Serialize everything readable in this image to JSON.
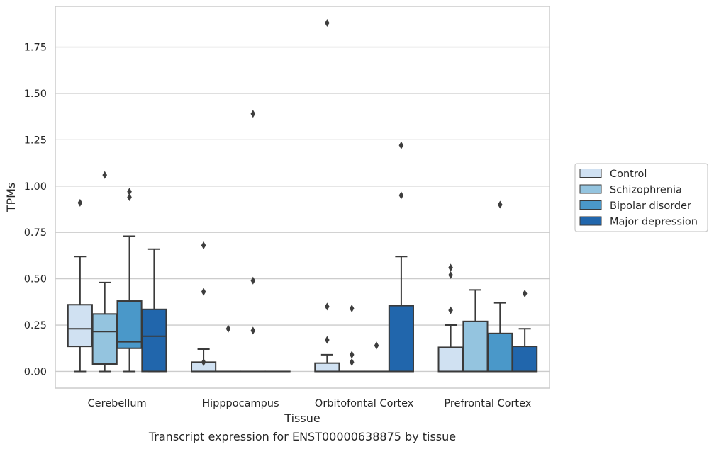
{
  "caption": "Transcript expression for ENST00000638875 by tissue",
  "chart_data": {
    "type": "box",
    "title": "",
    "xlabel": "Tissue",
    "ylabel": "TPMs",
    "ylim": [
      -0.09,
      1.97
    ],
    "yticks": [
      "0.00",
      "0.25",
      "0.50",
      "0.75",
      "1.00",
      "1.25",
      "1.50",
      "1.75"
    ],
    "grid": "horizontal",
    "legend_position": "right",
    "categories": [
      "Cerebellum",
      "Hipppocampus",
      "Orbitofontal Cortex",
      "Prefrontal Cortex"
    ],
    "series": [
      {
        "name": "Control",
        "color": "#d0e1f2",
        "boxes": [
          {
            "whislo": 0.0,
            "q1": 0.135,
            "med": 0.23,
            "q3": 0.36,
            "whishi": 0.62,
            "fliers": [
              0.91
            ]
          },
          {
            "whislo": 0.0,
            "q1": 0.0,
            "med": 0.0,
            "q3": 0.05,
            "whishi": 0.12,
            "fliers": [
              0.68,
              0.43,
              0.05
            ]
          },
          {
            "whislo": 0.0,
            "q1": 0.0,
            "med": 0.0,
            "q3": 0.045,
            "whishi": 0.09,
            "fliers": [
              1.88,
              0.35,
              0.17
            ]
          },
          {
            "whislo": 0.0,
            "q1": 0.0,
            "med": 0.0,
            "q3": 0.13,
            "whishi": 0.25,
            "fliers": [
              0.56,
              0.52,
              0.33
            ]
          }
        ]
      },
      {
        "name": "Schizophrenia",
        "color": "#94c4df",
        "boxes": [
          {
            "whislo": 0.0,
            "q1": 0.04,
            "med": 0.215,
            "q3": 0.31,
            "whishi": 0.48,
            "fliers": [
              1.06
            ]
          },
          {
            "whislo": 0.0,
            "q1": 0.0,
            "med": 0.0,
            "q3": 0.0,
            "whishi": 0.0,
            "fliers": [
              0.23
            ]
          },
          {
            "whislo": 0.0,
            "q1": 0.0,
            "med": 0.0,
            "q3": 0.0,
            "whishi": 0.0,
            "fliers": [
              0.34,
              0.09,
              0.05
            ]
          },
          {
            "whislo": 0.0,
            "q1": 0.0,
            "med": 0.0,
            "q3": 0.27,
            "whishi": 0.44,
            "fliers": []
          }
        ]
      },
      {
        "name": "Bipolar disorder",
        "color": "#4a98c9",
        "boxes": [
          {
            "whislo": 0.0,
            "q1": 0.125,
            "med": 0.16,
            "q3": 0.38,
            "whishi": 0.73,
            "fliers": [
              0.97,
              0.94
            ]
          },
          {
            "whislo": 0.0,
            "q1": 0.0,
            "med": 0.0,
            "q3": 0.0,
            "whishi": 0.0,
            "fliers": [
              1.39,
              0.49,
              0.22
            ]
          },
          {
            "whislo": 0.0,
            "q1": 0.0,
            "med": 0.0,
            "q3": 0.0,
            "whishi": 0.0,
            "fliers": [
              0.14
            ]
          },
          {
            "whislo": 0.0,
            "q1": 0.0,
            "med": 0.0,
            "q3": 0.205,
            "whishi": 0.37,
            "fliers": [
              0.9
            ]
          }
        ]
      },
      {
        "name": "Major depression",
        "color": "#2166ac",
        "boxes": [
          {
            "whislo": 0.0,
            "q1": 0.0,
            "med": 0.19,
            "q3": 0.335,
            "whishi": 0.66,
            "fliers": []
          },
          {
            "whislo": 0.0,
            "q1": 0.0,
            "med": 0.0,
            "q3": 0.0,
            "whishi": 0.0,
            "fliers": []
          },
          {
            "whislo": 0.0,
            "q1": 0.0,
            "med": 0.0,
            "q3": 0.355,
            "whishi": 0.62,
            "fliers": [
              1.22,
              0.95
            ]
          },
          {
            "whislo": 0.0,
            "q1": 0.0,
            "med": 0.0,
            "q3": 0.135,
            "whishi": 0.23,
            "fliers": [
              0.42
            ]
          }
        ]
      }
    ]
  }
}
